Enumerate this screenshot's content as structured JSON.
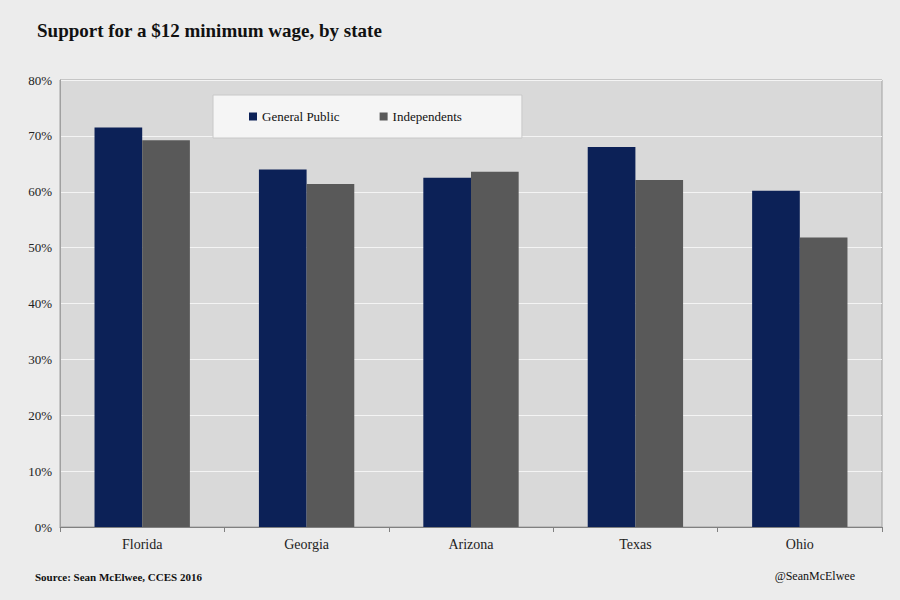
{
  "chart_data": {
    "type": "bar",
    "title": "Support for a $12 minimum wage, by state",
    "categories": [
      "Florida",
      "Georgia",
      "Arizona",
      "Texas",
      "Ohio"
    ],
    "series": [
      {
        "name": "General Public",
        "color": "#0c2157",
        "values": [
          71.5,
          64.0,
          62.5,
          68.0,
          60.2
        ]
      },
      {
        "name": "Independents",
        "color": "#595959",
        "values": [
          69.2,
          61.4,
          63.6,
          62.1,
          51.8
        ]
      }
    ],
    "ylim": [
      0,
      80
    ],
    "yticks": [
      {
        "value": 0,
        "label": "0%"
      },
      {
        "value": 10,
        "label": "10%"
      },
      {
        "value": 20,
        "label": "20%"
      },
      {
        "value": 30,
        "label": "30%"
      },
      {
        "value": 40,
        "label": "40%"
      },
      {
        "value": 50,
        "label": "50%"
      },
      {
        "value": 60,
        "label": "60%"
      },
      {
        "value": 70,
        "label": "70%"
      },
      {
        "value": 80,
        "label": "80%"
      }
    ],
    "grid": true,
    "legend": "top-left",
    "annotations": [
      "Source: Sean McElwee, CCES 2016",
      "@SeanMcElwee"
    ]
  }
}
